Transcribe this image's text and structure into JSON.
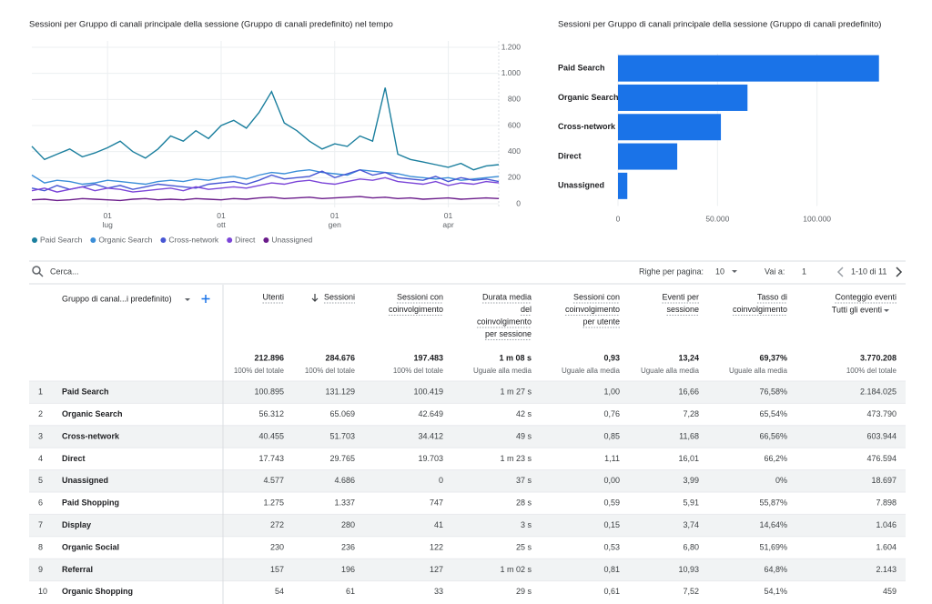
{
  "chart_data": [
    {
      "type": "line",
      "title": "Sessioni per Gruppo di canali principale della sessione (Gruppo di canali predefinito) nel tempo",
      "categories": [
        null,
        null,
        null,
        null,
        null,
        null,
        "01 lug",
        null,
        null,
        null,
        null,
        null,
        null,
        null,
        null,
        "01 ott",
        null,
        null,
        null,
        null,
        null,
        null,
        null,
        null,
        "01 gen",
        null,
        null,
        null,
        null,
        null,
        null,
        null,
        null,
        "01 apr",
        null,
        null,
        null,
        null
      ],
      "series": [
        {
          "name": "Paid Search",
          "color": "#1b7f9e",
          "values": [
            440,
            340,
            380,
            420,
            360,
            390,
            430,
            480,
            400,
            350,
            420,
            520,
            480,
            560,
            500,
            600,
            640,
            580,
            700,
            860,
            620,
            560,
            480,
            420,
            460,
            440,
            520,
            480,
            890,
            380,
            340,
            320,
            300,
            280,
            310,
            260,
            290,
            300
          ]
        },
        {
          "name": "Organic Search",
          "color": "#3b8ed8",
          "values": [
            220,
            160,
            180,
            170,
            150,
            160,
            180,
            170,
            160,
            150,
            170,
            180,
            170,
            190,
            180,
            200,
            210,
            190,
            220,
            240,
            230,
            250,
            260,
            240,
            230,
            220,
            260,
            250,
            240,
            230,
            210,
            200,
            190,
            200,
            180,
            190,
            200,
            210
          ]
        },
        {
          "name": "Cross-network",
          "color": "#4756d4",
          "values": [
            120,
            100,
            140,
            110,
            130,
            150,
            120,
            140,
            110,
            130,
            150,
            140,
            130,
            120,
            150,
            160,
            170,
            150,
            180,
            220,
            190,
            200,
            210,
            250,
            200,
            230,
            260,
            220,
            240,
            200,
            190,
            180,
            210,
            170,
            200,
            180,
            190,
            170
          ]
        },
        {
          "name": "Direct",
          "color": "#7b45d8",
          "values": [
            100,
            120,
            90,
            110,
            130,
            100,
            120,
            110,
            90,
            100,
            110,
            120,
            100,
            130,
            110,
            120,
            130,
            120,
            140,
            160,
            150,
            170,
            180,
            160,
            150,
            170,
            190,
            180,
            200,
            170,
            160,
            150,
            170,
            140,
            160,
            150,
            170,
            160
          ]
        },
        {
          "name": "Unassigned",
          "color": "#6a1b8a",
          "values": [
            30,
            35,
            25,
            30,
            40,
            35,
            30,
            25,
            35,
            40,
            30,
            35,
            30,
            40,
            35,
            30,
            40,
            35,
            45,
            50,
            40,
            45,
            50,
            40,
            45,
            50,
            55,
            45,
            50,
            40,
            45,
            35,
            40,
            45,
            35,
            40,
            45,
            40
          ]
        }
      ],
      "ylim": [
        0,
        1200
      ],
      "yticks": [
        0,
        200,
        400,
        600,
        800,
        {
          "value": 1000,
          "label": "1.000"
        },
        {
          "value": 1200,
          "label": "1.200"
        }
      ],
      "legend": "bottom",
      "grid": true
    },
    {
      "type": "bar",
      "orientation": "horizontal",
      "title": "Sessioni per Gruppo di canali principale della sessione (Gruppo di canali predefinito)",
      "categories": [
        "Paid Search",
        "Organic Search",
        "Cross-network",
        "Direct",
        "Unassigned"
      ],
      "values": [
        131129,
        65069,
        51703,
        29765,
        4686
      ],
      "color": "#1a73e8",
      "xlim": [
        0,
        150000
      ],
      "xticks": [
        0,
        {
          "value": 50000,
          "label": "50.000"
        },
        {
          "value": 100000,
          "label": "100.000"
        }
      ],
      "grid": true
    }
  ],
  "toolbar": {
    "search": "Cerca...",
    "rows_label": "Righe per pagina:",
    "rows_value": "10",
    "goto_label": "Vai a:",
    "goto_value": "1",
    "range": "1-10 di 11"
  },
  "table": {
    "dimension_header": "Gruppo di canal...i predefinito)",
    "events_filter": "Tutti gli eventi",
    "columns": [
      {
        "lines": [
          "Utenti"
        ],
        "total": "212.896",
        "note": "100% del totale"
      },
      {
        "lines": [
          "Sessioni"
        ],
        "total": "284.676",
        "note": "100% del totale"
      },
      {
        "lines": [
          "Sessioni con",
          "coinvolgimento"
        ],
        "total": "197.483",
        "note": "100% del totale"
      },
      {
        "lines": [
          "Durata media",
          "del",
          "coinvolgimento",
          "per sessione"
        ],
        "total": "1 m 08 s",
        "note": "Uguale alla media"
      },
      {
        "lines": [
          "Sessioni con",
          "coinvolgimento",
          "per utente"
        ],
        "total": "0,93",
        "note": "Uguale alla media"
      },
      {
        "lines": [
          "Eventi per",
          "sessione"
        ],
        "total": "13,24",
        "note": "Uguale alla media"
      },
      {
        "lines": [
          "Tasso di",
          "coinvolgimento"
        ],
        "total": "69,37%",
        "note": "Uguale alla media"
      },
      {
        "lines": [
          "Conteggio eventi"
        ],
        "total": "3.770.208",
        "note": "100% del totale"
      }
    ],
    "rows": [
      [
        "1",
        "Paid Search",
        "100.895",
        "131.129",
        "100.419",
        "1 m 27 s",
        "1,00",
        "16,66",
        "76,58%",
        "2.184.025"
      ],
      [
        "2",
        "Organic Search",
        "56.312",
        "65.069",
        "42.649",
        "42 s",
        "0,76",
        "7,28",
        "65,54%",
        "473.790"
      ],
      [
        "3",
        "Cross-network",
        "40.455",
        "51.703",
        "34.412",
        "49 s",
        "0,85",
        "11,68",
        "66,56%",
        "603.944"
      ],
      [
        "4",
        "Direct",
        "17.743",
        "29.765",
        "19.703",
        "1 m 23 s",
        "1,11",
        "16,01",
        "66,2%",
        "476.594"
      ],
      [
        "5",
        "Unassigned",
        "4.577",
        "4.686",
        "0",
        "37 s",
        "0,00",
        "3,99",
        "0%",
        "18.697"
      ],
      [
        "6",
        "Paid Shopping",
        "1.275",
        "1.337",
        "747",
        "28 s",
        "0,59",
        "5,91",
        "55,87%",
        "7.898"
      ],
      [
        "7",
        "Display",
        "272",
        "280",
        "41",
        "3 s",
        "0,15",
        "3,74",
        "14,64%",
        "1.046"
      ],
      [
        "8",
        "Organic Social",
        "230",
        "236",
        "122",
        "25 s",
        "0,53",
        "6,80",
        "51,69%",
        "1.604"
      ],
      [
        "9",
        "Referral",
        "157",
        "196",
        "127",
        "1 m 02 s",
        "0,81",
        "10,93",
        "64,8%",
        "2.143"
      ],
      [
        "10",
        "Organic Shopping",
        "54",
        "61",
        "33",
        "29 s",
        "0,61",
        "7,52",
        "54,1%",
        "459"
      ]
    ]
  }
}
